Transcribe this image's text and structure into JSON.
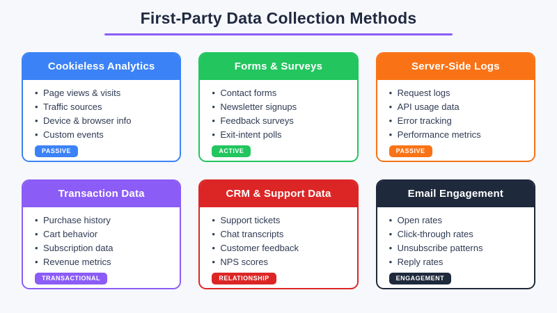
{
  "page": {
    "title": "First-Party Data Collection Methods",
    "accent_color": "#8b5cf6",
    "background_color": "#f7f8fb",
    "title_color": "#1f2940"
  },
  "cards": [
    {
      "title": "Cookieless Analytics",
      "color": "#3b82f6",
      "items": [
        "Page views & visits",
        "Traffic sources",
        "Device & browser info",
        "Custom events"
      ],
      "badge": "PASSIVE"
    },
    {
      "title": "Forms & Surveys",
      "color": "#22c55e",
      "items": [
        "Contact forms",
        "Newsletter signups",
        "Feedback surveys",
        "Exit-intent polls"
      ],
      "badge": "ACTIVE"
    },
    {
      "title": "Server-Side Logs",
      "color": "#f97316",
      "items": [
        "Request logs",
        "API usage data",
        "Error tracking",
        "Performance metrics"
      ],
      "badge": "PASSIVE"
    },
    {
      "title": "Transaction Data",
      "color": "#8b5cf6",
      "items": [
        "Purchase history",
        "Cart behavior",
        "Subscription data",
        "Revenue metrics"
      ],
      "badge": "TRANSACTIONAL"
    },
    {
      "title": "CRM & Support Data",
      "color": "#dc2626",
      "items": [
        "Support tickets",
        "Chat transcripts",
        "Customer feedback",
        "NPS scores"
      ],
      "badge": "RELATIONSHIP"
    },
    {
      "title": "Email Engagement",
      "color": "#1e293b",
      "items": [
        "Open rates",
        "Click-through rates",
        "Unsubscribe patterns",
        "Reply rates"
      ],
      "badge": "ENGAGEMENT"
    }
  ]
}
